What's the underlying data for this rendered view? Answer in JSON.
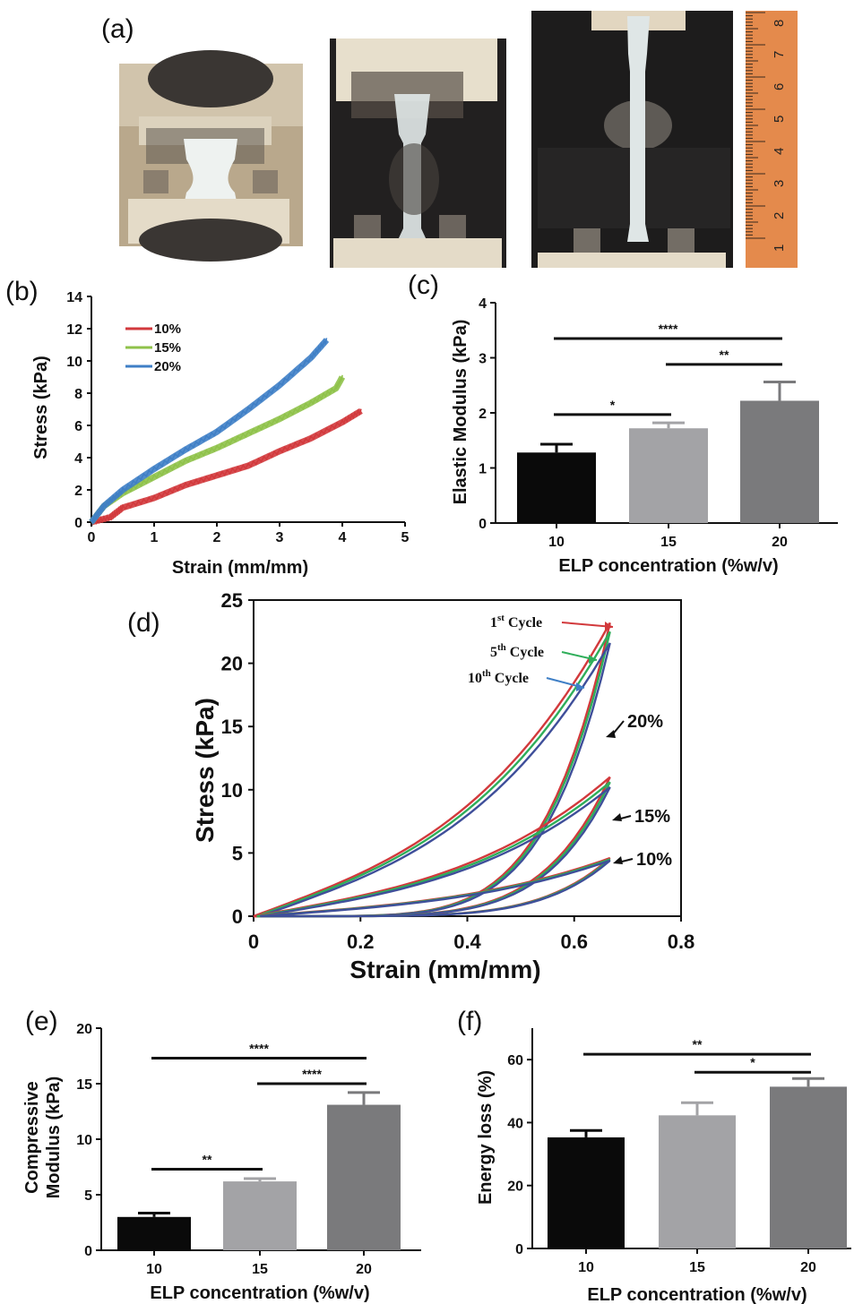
{
  "panels": {
    "a": "(a)",
    "b": "(b)",
    "c": "(c)",
    "d": "(d)",
    "e": "(e)",
    "f": "(f)"
  },
  "photos": {
    "ruler_marks": [
      "8",
      "7",
      "6",
      "5",
      "4",
      "3",
      "2",
      "1"
    ],
    "colors": {
      "wood": "#c9b79a",
      "clamp": "#e2d6c0",
      "gel": "#e8efef",
      "ruler": "#e48a4c",
      "dark": "#2a2522"
    }
  },
  "chart_data": [
    {
      "id": "b",
      "type": "line",
      "xlabel": "Strain (mm/mm)",
      "ylabel": "Stress (kPa)",
      "xlim": [
        0,
        5
      ],
      "ylim": [
        0,
        14
      ],
      "xticks": [
        "0",
        "1",
        "2",
        "3",
        "4",
        "5"
      ],
      "yticks": [
        "0",
        "2",
        "4",
        "6",
        "8",
        "10",
        "12",
        "14"
      ],
      "legend_position": "top-left",
      "series": [
        {
          "name": "10%",
          "color": "#d2393c",
          "x": [
            0,
            0.3,
            0.5,
            1,
            1.5,
            2,
            2.5,
            3,
            3.5,
            4,
            4.3
          ],
          "y": [
            0,
            0.3,
            0.9,
            1.5,
            2.3,
            2.9,
            3.5,
            4.4,
            5.2,
            6.2,
            6.9
          ]
        },
        {
          "name": "15%",
          "color": "#8fc24a",
          "x": [
            0,
            0.2,
            0.5,
            1,
            1.5,
            2,
            2.5,
            3,
            3.5,
            3.9,
            4.0
          ],
          "y": [
            0,
            1.0,
            1.8,
            2.8,
            3.8,
            4.6,
            5.5,
            6.4,
            7.4,
            8.3,
            9.0
          ]
        },
        {
          "name": "20%",
          "color": "#3f7fc6",
          "x": [
            0,
            0.2,
            0.5,
            1,
            1.5,
            2,
            2.5,
            3,
            3.5,
            3.75
          ],
          "y": [
            0,
            1.0,
            2.0,
            3.3,
            4.5,
            5.6,
            7.0,
            8.5,
            10.2,
            11.3
          ]
        }
      ]
    },
    {
      "id": "c",
      "type": "bar",
      "xlabel": "ELP concentration (%w/v)",
      "ylabel": "Elastic Modulus (kPa)",
      "ylim": [
        0,
        4
      ],
      "yticks": [
        "0",
        "1",
        "2",
        "3",
        "4"
      ],
      "categories": [
        "10",
        "15",
        "20"
      ],
      "values": [
        1.28,
        1.72,
        2.22
      ],
      "errors": [
        0.15,
        0.1,
        0.34
      ],
      "bar_colors": [
        "#0a0a0a",
        "#a3a3a6",
        "#7a7a7c"
      ],
      "significance": [
        {
          "from": 0,
          "to": 1,
          "label": "*",
          "y": 1.97
        },
        {
          "from": 1,
          "to": 2,
          "label": "**",
          "y": 2.88
        },
        {
          "from": 0,
          "to": 2,
          "label": "****",
          "y": 3.35
        }
      ]
    },
    {
      "id": "d",
      "type": "line",
      "xlabel": "Strain (mm/mm)",
      "ylabel": "Stress (kPa)",
      "xlim": [
        0,
        0.8
      ],
      "ylim": [
        0,
        25
      ],
      "xticks": [
        "0",
        "0.2",
        "0.4",
        "0.6",
        "0.8"
      ],
      "yticks": [
        "0",
        "5",
        "10",
        "15",
        "20",
        "25"
      ],
      "cycle_labels": [
        {
          "main": "1",
          "sup": "st",
          "rest": " Cycle",
          "color": "#d2393c"
        },
        {
          "main": "5",
          "sup": "th",
          "rest": " Cycle",
          "color": "#2fae5a"
        },
        {
          "main": "10",
          "sup": "th",
          "rest": " Cycle",
          "color": "#3f7fc6"
        }
      ],
      "concentration_labels": [
        "20%",
        "15%",
        "10%"
      ],
      "series": [
        {
          "name": "20%",
          "peaks": [
            23.2,
            22.5,
            21.6
          ]
        },
        {
          "name": "15%",
          "peaks": [
            11.0,
            10.6,
            10.2
          ]
        },
        {
          "name": "10%",
          "peaks": [
            4.6,
            4.5,
            4.4
          ]
        }
      ],
      "cycle_colors": [
        "#d2393c",
        "#2fae5a",
        "#3f4f9a"
      ]
    },
    {
      "id": "e",
      "type": "bar",
      "xlabel": "ELP concentration (%w/v)",
      "ylabel": [
        "Compressive",
        "Modulus (kPa)"
      ],
      "ylim": [
        0,
        20
      ],
      "yticks": [
        "0",
        "5",
        "10",
        "15",
        "20"
      ],
      "categories": [
        "10",
        "15",
        "20"
      ],
      "values": [
        3.0,
        6.2,
        13.1
      ],
      "errors": [
        0.35,
        0.25,
        1.1
      ],
      "bar_colors": [
        "#0a0a0a",
        "#a3a3a6",
        "#7a7a7c"
      ],
      "significance": [
        {
          "from": 0,
          "to": 1,
          "label": "**",
          "y": 7.3
        },
        {
          "from": 1,
          "to": 2,
          "label": "****",
          "y": 15.0
        },
        {
          "from": 0,
          "to": 2,
          "label": "****",
          "y": 17.3
        }
      ]
    },
    {
      "id": "f",
      "type": "bar",
      "xlabel": "ELP concentration (%w/v)",
      "ylabel": "Energy loss (%)",
      "ylim": [
        0,
        70
      ],
      "yticks": [
        "0",
        "20",
        "40",
        "60"
      ],
      "categories": [
        "10",
        "15",
        "20"
      ],
      "values": [
        35.3,
        42.3,
        51.4
      ],
      "errors": [
        2.2,
        4.0,
        2.6
      ],
      "bar_colors": [
        "#0a0a0a",
        "#a3a3a6",
        "#7a7a7c"
      ],
      "significance": [
        {
          "from": 1,
          "to": 2,
          "label": "*",
          "y": 56.0
        },
        {
          "from": 0,
          "to": 2,
          "label": "**",
          "y": 61.7
        }
      ]
    }
  ]
}
